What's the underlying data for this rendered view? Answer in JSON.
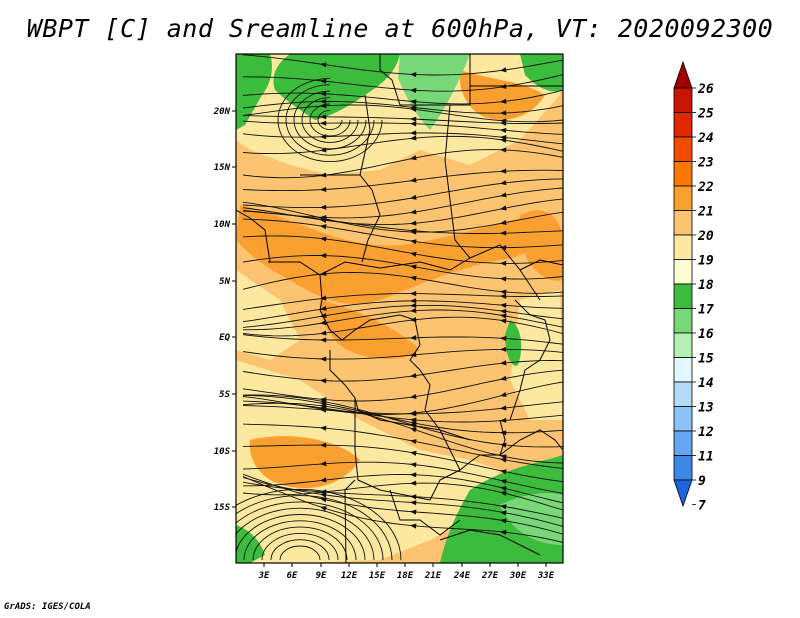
{
  "title": "WBPT [C] and Sreamline at 600hPa, VT: 2020092300",
  "credit": "GrADS: IGES/COLA",
  "map": {
    "lat_ticks": [
      "20N",
      "15N",
      "10N",
      "5N",
      "EQ",
      "5S",
      "10S",
      "15S"
    ],
    "lon_ticks": [
      "3E",
      "6E",
      "9E",
      "12E",
      "15E",
      "18E",
      "21E",
      "24E",
      "27E",
      "30E",
      "33E"
    ]
  },
  "colorbar": {
    "labels": [
      "26",
      "25",
      "24",
      "23",
      "22",
      "21",
      "20",
      "19",
      "18",
      "17",
      "16",
      "15",
      "14",
      "13",
      "12",
      "11",
      "9",
      "7"
    ],
    "colors": [
      "#a00000",
      "#c81400",
      "#e02800",
      "#f04c00",
      "#f87800",
      "#faa030",
      "#fcc470",
      "#fde8a0",
      "#fefcd0",
      "#3cbc3c",
      "#78d878",
      "#b4f0b4",
      "#e0f8ff",
      "#b4dcfa",
      "#8cc4f5",
      "#64a6ef",
      "#3c88e6",
      "#1e64dc"
    ]
  }
}
